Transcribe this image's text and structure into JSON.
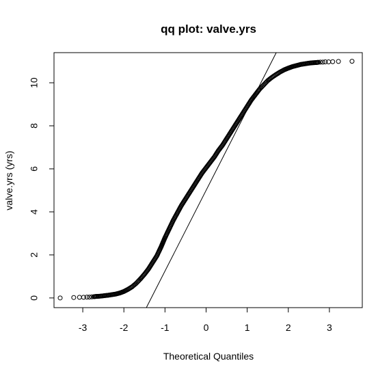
{
  "chart_data": {
    "type": "scatter",
    "title": "qq plot: valve.yrs",
    "xlabel": "Theoretical Quantiles",
    "ylabel": "valve.yrs (yrs)",
    "xlim": [
      -3.7,
      3.8
    ],
    "ylim": [
      -0.45,
      11.4
    ],
    "xticks": [
      -3,
      -2,
      -1,
      0,
      1,
      2,
      3
    ],
    "xtick_labels": [
      "-3",
      "-2",
      "-1",
      "0",
      "1",
      "2",
      "3"
    ],
    "yticks": [
      0,
      2,
      4,
      6,
      8,
      10
    ],
    "ytick_labels": [
      "0",
      "2",
      "4",
      "6",
      "8",
      "10"
    ],
    "grid": false,
    "marker": "open-circle",
    "reference_line": {
      "intercept": 5.0,
      "slope": 3.75
    },
    "series": [
      {
        "x": [
          -3.55,
          -3.22,
          -3.08,
          -2.98,
          -2.9,
          -2.84,
          -2.78,
          -2.73,
          -2.68,
          -2.6,
          -2.5,
          -2.4,
          -2.3,
          -2.2,
          -2.1,
          -2.0,
          -1.9,
          -1.8,
          -1.7,
          -1.6,
          -1.5,
          -1.4,
          -1.3,
          -1.2,
          -1.1,
          -1.0,
          -0.9,
          -0.8,
          -0.7,
          -0.6,
          -0.5,
          -0.4,
          -0.3,
          -0.2,
          -0.1,
          0.0,
          0.1,
          0.2,
          0.3,
          0.4,
          0.5,
          0.6,
          0.7,
          0.8,
          0.9,
          1.0,
          1.1,
          1.2,
          1.3,
          1.4,
          1.5,
          1.6,
          1.7,
          1.8,
          1.9,
          2.0,
          2.1,
          2.2,
          2.3,
          2.4,
          2.5,
          2.6,
          2.68,
          2.73,
          2.78,
          2.84,
          2.9,
          2.98,
          3.08,
          3.22,
          3.55
        ],
        "y": [
          0.0,
          0.02,
          0.03,
          0.03,
          0.04,
          0.04,
          0.05,
          0.06,
          0.07,
          0.08,
          0.1,
          0.12,
          0.15,
          0.18,
          0.23,
          0.3,
          0.4,
          0.52,
          0.68,
          0.88,
          1.1,
          1.35,
          1.65,
          1.95,
          2.35,
          2.8,
          3.2,
          3.6,
          3.95,
          4.3,
          4.6,
          4.9,
          5.2,
          5.5,
          5.8,
          6.05,
          6.3,
          6.55,
          6.85,
          7.1,
          7.4,
          7.7,
          8.0,
          8.3,
          8.6,
          8.9,
          9.2,
          9.45,
          9.7,
          9.9,
          10.1,
          10.25,
          10.38,
          10.5,
          10.6,
          10.68,
          10.75,
          10.8,
          10.85,
          10.88,
          10.91,
          10.93,
          10.94,
          10.95,
          10.96,
          10.96,
          10.97,
          10.97,
          10.98,
          10.99,
          11.0
        ]
      }
    ]
  }
}
